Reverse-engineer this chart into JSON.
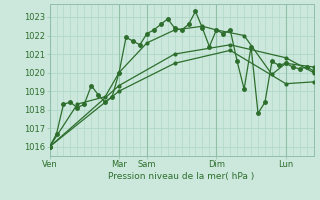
{
  "title": "",
  "xlabel": "Pression niveau de la mer( hPa )",
  "bg_color": "#cce8dc",
  "grid_color_minor": "#b0d8c8",
  "grid_color_major": "#90c0a8",
  "line_color": "#2d6e2d",
  "ylim": [
    1015.5,
    1023.7
  ],
  "yticks": [
    1016,
    1017,
    1018,
    1019,
    1020,
    1021,
    1022,
    1023
  ],
  "day_positions": [
    0,
    60,
    84,
    144,
    204
  ],
  "day_labels": [
    "Ven",
    "Mar",
    "Sam",
    "Dim",
    "Lun"
  ],
  "xlim": [
    0,
    228
  ],
  "series": [
    [
      0,
      1016.0,
      6,
      1016.7,
      12,
      1018.3,
      18,
      1018.4,
      24,
      1018.1,
      30,
      1018.3,
      36,
      1019.3,
      42,
      1018.8,
      48,
      1018.4,
      54,
      1018.7,
      60,
      1020.0,
      66,
      1021.9,
      72,
      1021.7,
      78,
      1021.5,
      84,
      1022.1,
      90,
      1022.3,
      96,
      1022.6,
      102,
      1022.9,
      108,
      1022.4,
      114,
      1022.3,
      120,
      1022.6,
      126,
      1023.3,
      132,
      1022.4,
      138,
      1021.4,
      144,
      1022.3,
      150,
      1022.1,
      156,
      1022.3,
      162,
      1020.6,
      168,
      1019.1,
      174,
      1021.4,
      180,
      1017.8,
      186,
      1018.4,
      192,
      1020.6,
      198,
      1020.4,
      204,
      1020.5,
      210,
      1020.3,
      216,
      1020.2,
      222,
      1020.3,
      228,
      1020.1
    ],
    [
      0,
      1016.0,
      24,
      1018.3,
      48,
      1018.7,
      60,
      1020.0,
      84,
      1021.6,
      108,
      1022.3,
      132,
      1022.5,
      144,
      1022.3,
      168,
      1022.0,
      192,
      1019.9,
      204,
      1020.5,
      228,
      1020.3
    ],
    [
      0,
      1016.0,
      60,
      1019.3,
      108,
      1021.0,
      156,
      1021.5,
      204,
      1020.8,
      228,
      1020.0
    ],
    [
      0,
      1016.0,
      60,
      1019.0,
      108,
      1020.5,
      156,
      1021.2,
      204,
      1019.4,
      228,
      1019.5
    ]
  ]
}
